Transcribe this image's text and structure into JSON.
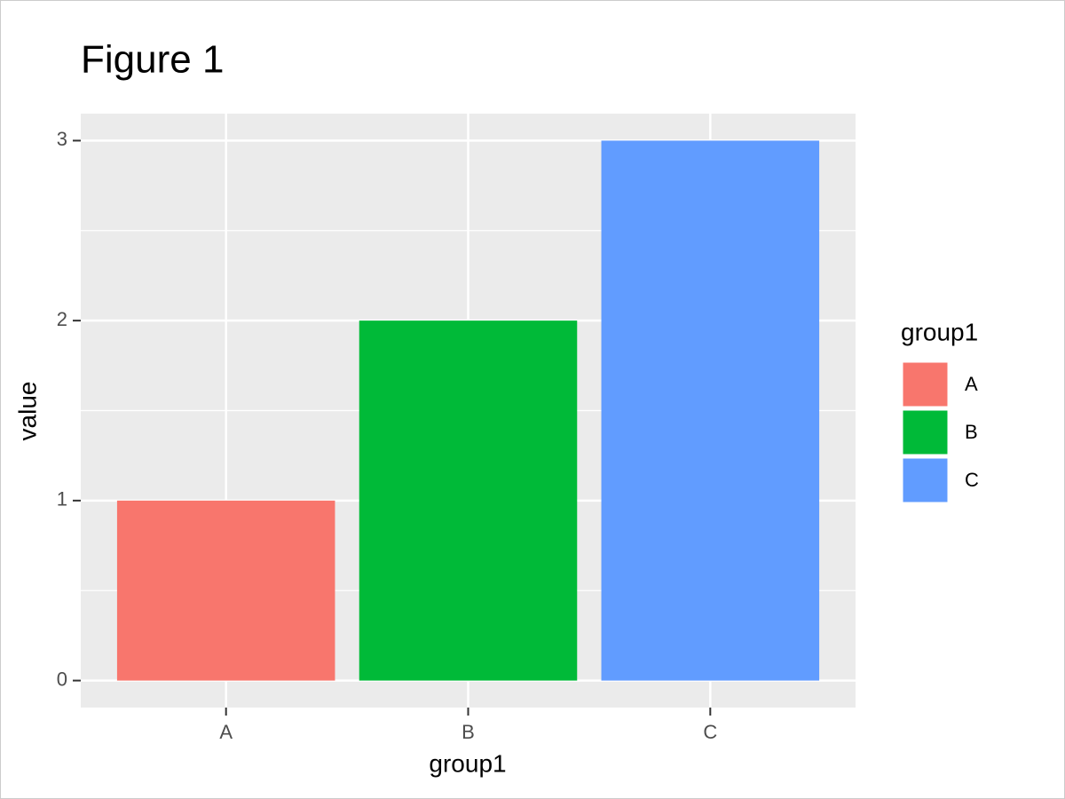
{
  "chart_data": {
    "type": "bar",
    "title": "Figure 1",
    "x_label": "group1",
    "y_label": "value",
    "legend_title": "group1",
    "categories": [
      "A",
      "B",
      "C"
    ],
    "values": [
      1,
      2,
      3
    ],
    "colors": [
      "#F8766D",
      "#00BA38",
      "#619CFF"
    ],
    "ylim": [
      -0.15,
      3.15
    ],
    "yticks": [
      0,
      1,
      2,
      3
    ],
    "minor_yticks": [
      0.5,
      1.5,
      2.5
    ],
    "grid": true,
    "legend_position": "right"
  }
}
